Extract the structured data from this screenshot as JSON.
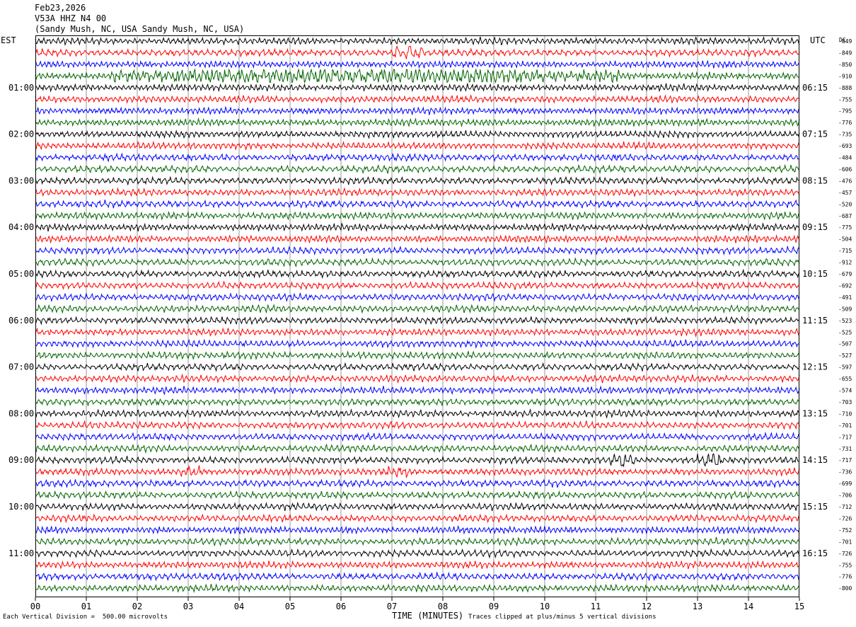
{
  "header": {
    "date": "Feb23,2026",
    "station": "V53A HHZ N4 00",
    "location": "(Sandy Mush, NC, USA Sandy Mush, NC, USA)"
  },
  "axes": {
    "left_label": "EST",
    "right_label": "UTC",
    "dc_label": "DC",
    "x_title": "TIME (MINUTES)"
  },
  "footer": {
    "scale_note": "Each Vertical Division =  500.00 microvolts",
    "clip_note": "Traces clipped at plus/minus 5 vertical divisions"
  },
  "colors": {
    "trace_cycle": [
      "#000000",
      "#ff0000",
      "#0000ff",
      "#006400"
    ],
    "grid": "#9a9a9a",
    "border": "#000000"
  },
  "chart_data": {
    "type": "line",
    "subtype": "helicorder",
    "xlim": [
      0,
      15
    ],
    "x_ticks": [
      "00",
      "01",
      "02",
      "03",
      "04",
      "05",
      "06",
      "07",
      "08",
      "09",
      "10",
      "11",
      "12",
      "13",
      "14",
      "15"
    ],
    "x_unit": "minutes",
    "left_time_labels": [
      {
        "row": 4,
        "label": "01:00"
      },
      {
        "row": 8,
        "label": "02:00"
      },
      {
        "row": 12,
        "label": "03:00"
      },
      {
        "row": 16,
        "label": "04:00"
      },
      {
        "row": 20,
        "label": "05:00"
      },
      {
        "row": 24,
        "label": "06:00"
      },
      {
        "row": 28,
        "label": "07:00"
      },
      {
        "row": 32,
        "label": "08:00"
      },
      {
        "row": 36,
        "label": "09:00"
      },
      {
        "row": 40,
        "label": "10:00"
      },
      {
        "row": 44,
        "label": "11:00"
      }
    ],
    "right_time_labels": [
      {
        "row": 4,
        "label": "06:15"
      },
      {
        "row": 8,
        "label": "07:15"
      },
      {
        "row": 12,
        "label": "08:15"
      },
      {
        "row": 16,
        "label": "09:15"
      },
      {
        "row": 20,
        "label": "10:15"
      },
      {
        "row": 24,
        "label": "11:15"
      },
      {
        "row": 28,
        "label": "12:15"
      },
      {
        "row": 32,
        "label": "13:15"
      },
      {
        "row": 36,
        "label": "14:15"
      },
      {
        "row": 40,
        "label": "15:15"
      },
      {
        "row": 44,
        "label": "16:15"
      }
    ],
    "dc_offsets": [
      "-849",
      "-849",
      "-850",
      "-910",
      "-888",
      "-755",
      "-795",
      "-776",
      "-735",
      "-693",
      "-484",
      "-606",
      "-476",
      "-457",
      "-520",
      "-687",
      "-775",
      "-504",
      "-715",
      "-912",
      "-679",
      "-692",
      "-491",
      "-509",
      "-523",
      "-525",
      "-507",
      "-527",
      "-597",
      "-655",
      "-574",
      "-703",
      "-710",
      "-701",
      "-717",
      "-731",
      "-717",
      "-736",
      "-699",
      "-706",
      "-712",
      "-726",
      "-752",
      "-701",
      "-726",
      "-755",
      "-776",
      "-800"
    ],
    "events": [
      {
        "row": 1,
        "minute_start": 7.0,
        "minute_end": 7.6,
        "amplitude": 1.6
      },
      {
        "row": 3,
        "minute_start": 1.5,
        "minute_end": 11.5,
        "amplitude": 1.5
      },
      {
        "row": 36,
        "minute_start": 11.3,
        "minute_end": 11.75,
        "amplitude": 1.3
      },
      {
        "row": 36,
        "minute_start": 13.0,
        "minute_end": 13.5,
        "amplitude": 1.4
      },
      {
        "row": 37,
        "minute_start": 2.8,
        "minute_end": 3.3,
        "amplitude": 0.8
      },
      {
        "row": 37,
        "minute_start": 6.8,
        "minute_end": 7.4,
        "amplitude": 0.8
      }
    ]
  }
}
